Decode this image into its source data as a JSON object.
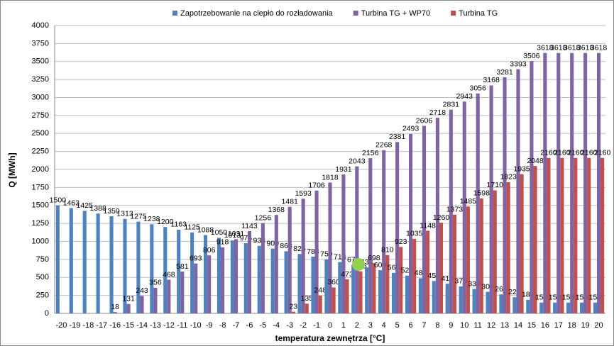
{
  "chart_data": {
    "type": "bar",
    "x_label": "temperatura zewnętrza  [°C]",
    "y_label": "Q [MWh]",
    "categories": [
      "-20",
      "-19",
      "-18",
      "-17",
      "-16",
      "-15",
      "-14",
      "-13",
      "-12",
      "-11",
      "-10",
      "-9",
      "-8",
      "-7",
      "-6",
      "-5",
      "-4",
      "-3",
      "-2",
      "-1",
      "0",
      "1",
      "2",
      "3",
      "4",
      "5",
      "6",
      "7",
      "8",
      "9",
      "10",
      "11",
      "12",
      "13",
      "14",
      "15",
      "16",
      "17",
      "18",
      "19",
      "20"
    ],
    "series": [
      {
        "name": "Zapotrzebowanie na ciepło do rozładowania",
        "color": "#4f81bd",
        "values": [
          1500,
          1463,
          1425,
          1388,
          1350,
          1313,
          1275,
          1238,
          1200,
          1163,
          1125,
          1088,
          1050,
          1013,
          975,
          938,
          900,
          863,
          825,
          788,
          750,
          713,
          675,
          638,
          600,
          563,
          525,
          488,
          450,
          413,
          375,
          338,
          300,
          263,
          225,
          188,
          150,
          150,
          150,
          150,
          150
        ]
      },
      {
        "name": "Turbina TG + WP70",
        "color": "#8064a2",
        "values": [
          null,
          null,
          null,
          null,
          18,
          131,
          243,
          356,
          468,
          581,
          693,
          806,
          918,
          1031,
          1143,
          1256,
          1368,
          1481,
          1593,
          1706,
          1818,
          1931,
          2043,
          2156,
          2268,
          2381,
          2493,
          2606,
          2718,
          2831,
          2943,
          3056,
          3168,
          3281,
          3393,
          3506,
          3618,
          3618,
          3618,
          3618,
          3618
        ]
      },
      {
        "name": "Turbina TG",
        "color": "#c0504d",
        "values": [
          null,
          null,
          null,
          null,
          null,
          null,
          null,
          null,
          null,
          null,
          null,
          null,
          null,
          null,
          null,
          null,
          null,
          23,
          135,
          248,
          360,
          473,
          585,
          698,
          810,
          923,
          1035,
          1148,
          1260,
          1373,
          1485,
          1598,
          1710,
          1823,
          1935,
          2048,
          2160,
          2160,
          2160,
          2160,
          2160
        ]
      }
    ],
    "ylim": [
      0,
      4000
    ],
    "yticks": [
      0,
      250,
      500,
      750,
      1000,
      1250,
      1500,
      1750,
      2000,
      2250,
      2500,
      2750,
      3000,
      3250,
      3500,
      3750,
      4000
    ],
    "grid": true
  }
}
